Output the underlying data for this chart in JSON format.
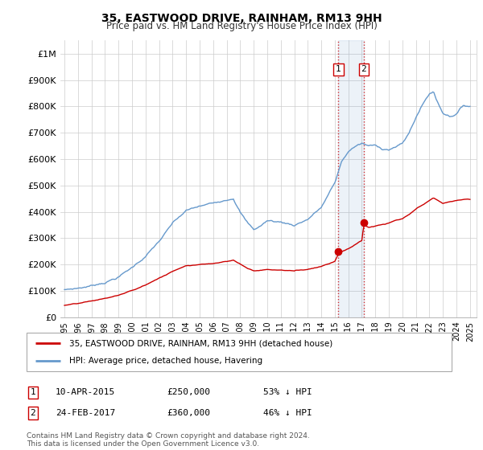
{
  "title": "35, EASTWOOD DRIVE, RAINHAM, RM13 9HH",
  "subtitle": "Price paid vs. HM Land Registry's House Price Index (HPI)",
  "ylim": [
    0,
    1050000
  ],
  "yticks": [
    0,
    100000,
    200000,
    300000,
    400000,
    500000,
    600000,
    700000,
    800000,
    900000,
    1000000
  ],
  "ytick_labels": [
    "£0",
    "£100K",
    "£200K",
    "£300K",
    "£400K",
    "£500K",
    "£600K",
    "£700K",
    "£800K",
    "£900K",
    "£1M"
  ],
  "hpi_color": "#6699cc",
  "price_color": "#cc0000",
  "sale1_price": 250000,
  "sale1_x": 2015.27,
  "sale2_price": 360000,
  "sale2_x": 2017.15,
  "legend_line1": "35, EASTWOOD DRIVE, RAINHAM, RM13 9HH (detached house)",
  "legend_line2": "HPI: Average price, detached house, Havering",
  "table_row1": [
    "1",
    "10-APR-2015",
    "£250,000",
    "53% ↓ HPI"
  ],
  "table_row2": [
    "2",
    "24-FEB-2017",
    "£360,000",
    "46% ↓ HPI"
  ],
  "footer": "Contains HM Land Registry data © Crown copyright and database right 2024.\nThis data is licensed under the Open Government Licence v3.0.",
  "xlim_left": 1994.7,
  "xlim_right": 2025.5
}
